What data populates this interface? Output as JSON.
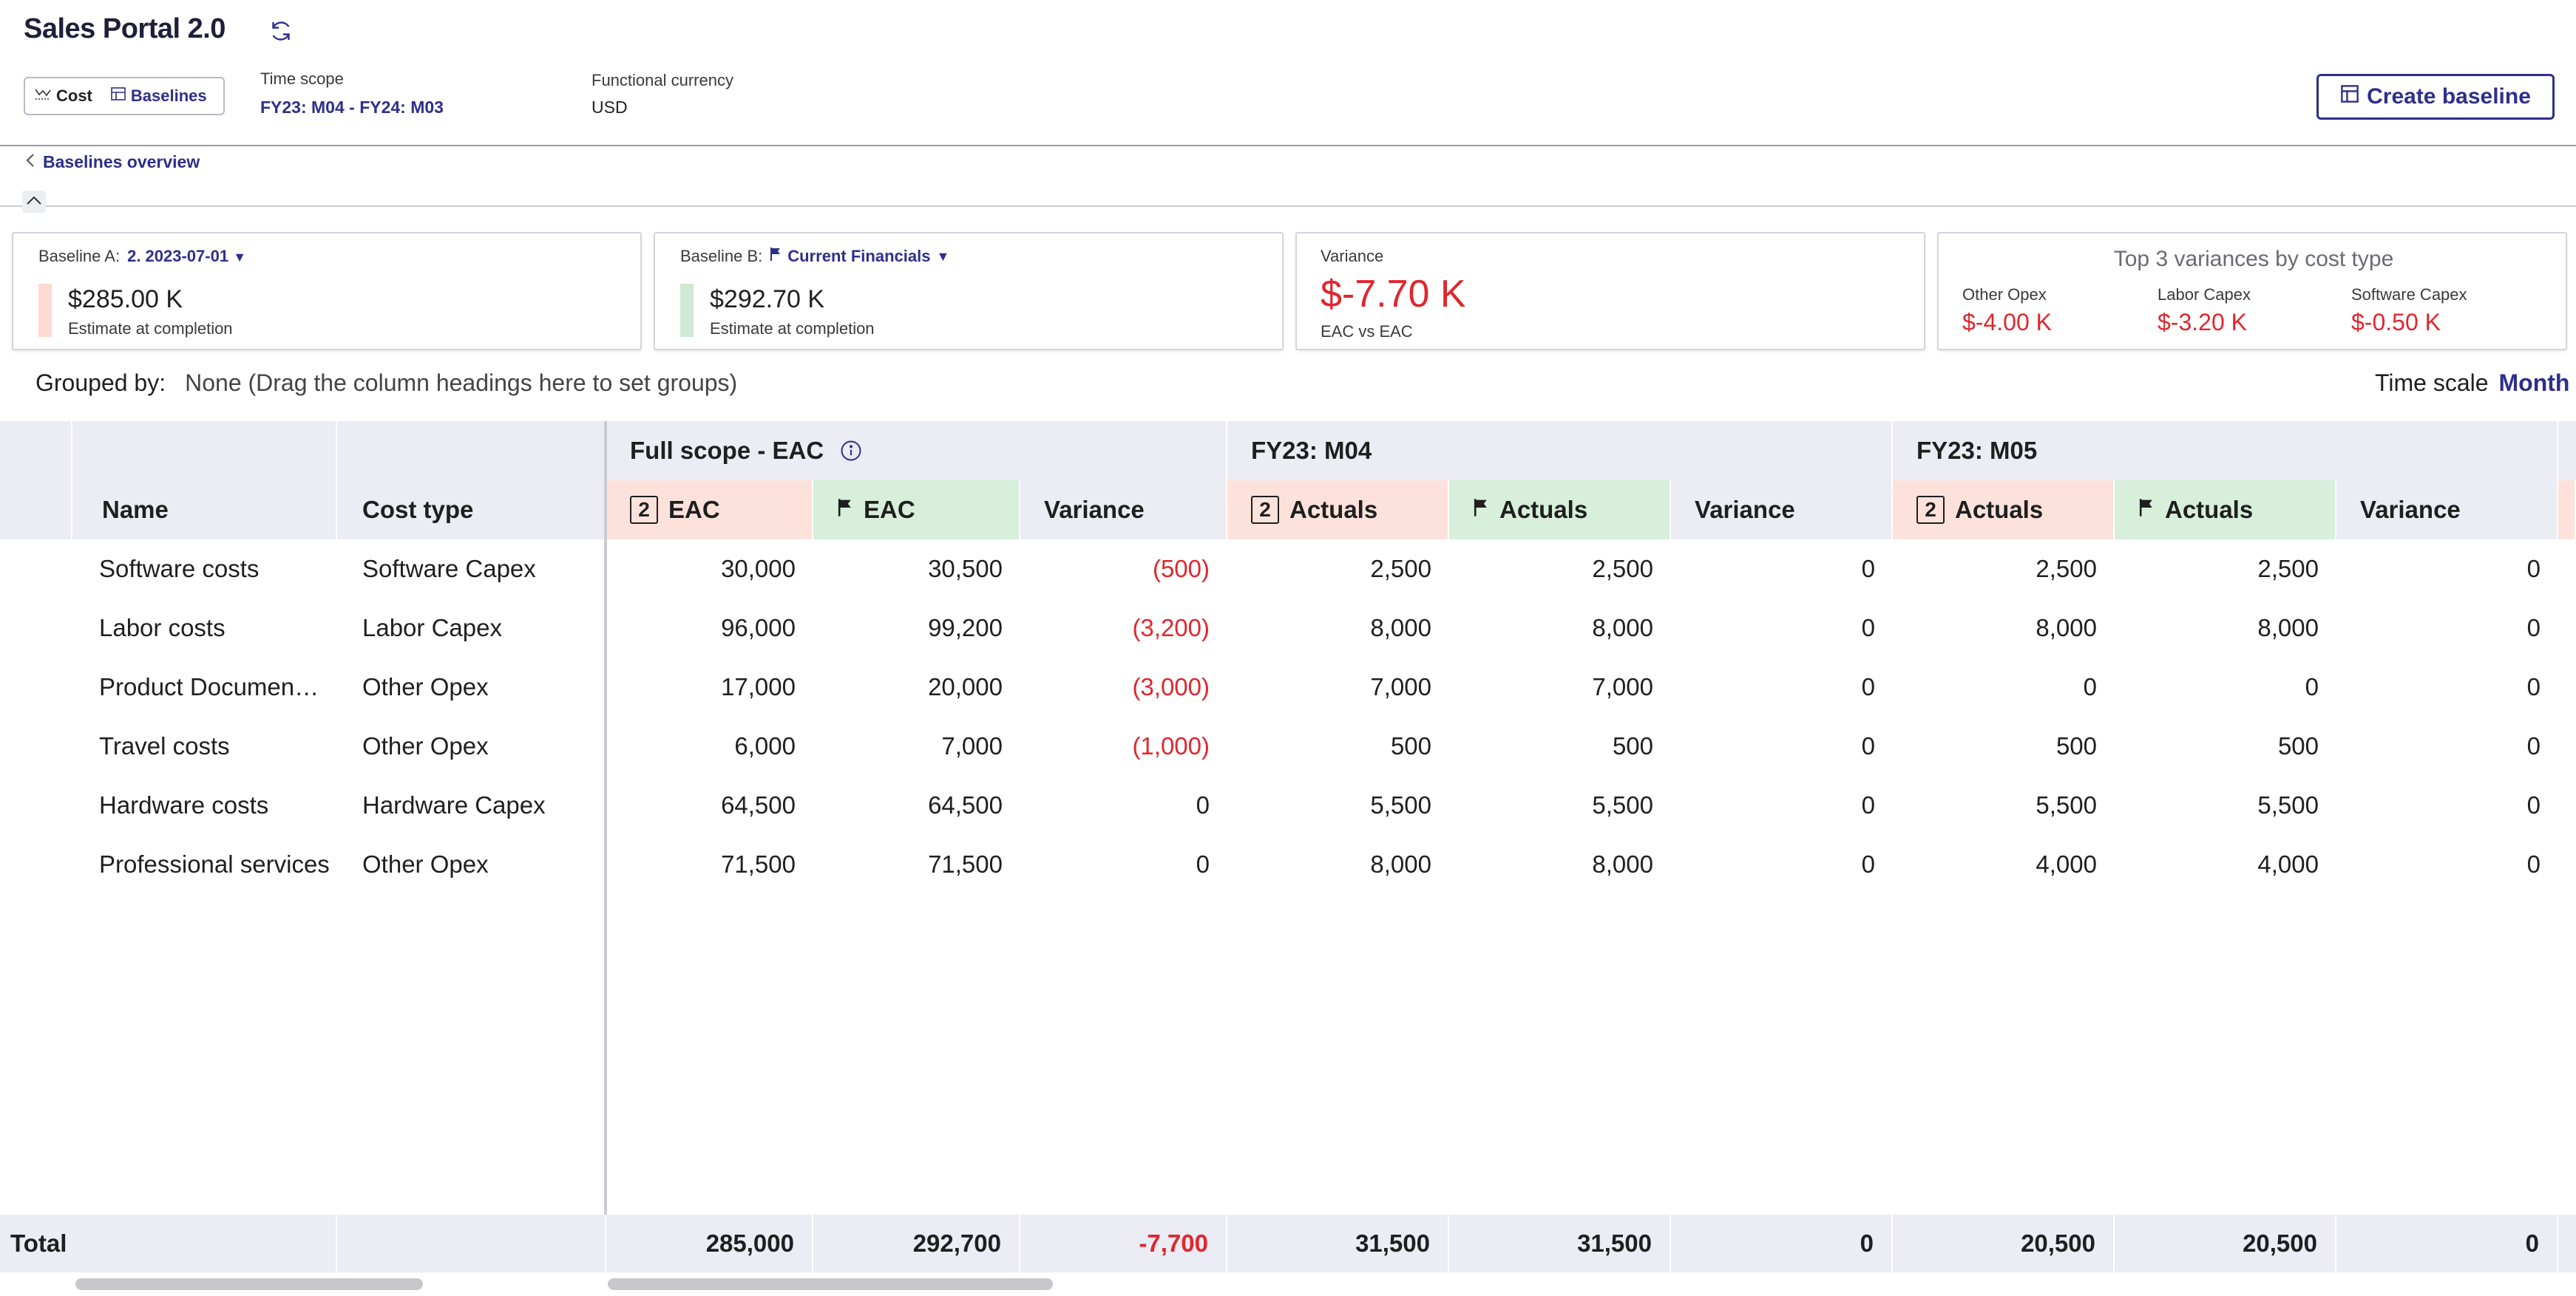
{
  "app": {
    "title": "Sales Portal 2.0"
  },
  "toggle": {
    "cost_label": "Cost",
    "baselines_label": "Baselines"
  },
  "time_scope": {
    "label": "Time scope",
    "value": "FY23: M04 - FY24: M03"
  },
  "functional_currency": {
    "label": "Functional currency",
    "value": "USD"
  },
  "create_baseline_label": "Create baseline",
  "back_link_label": "Baselines overview",
  "cards": {
    "baseline_a": {
      "label": "Baseline A:",
      "selected": "2. 2023-07-01",
      "amount": "$285.00 K",
      "caption": "Estimate at completion",
      "color": "#fdd9d2"
    },
    "baseline_b": {
      "label": "Baseline B:",
      "selected": "Current Financials",
      "amount": "$292.70 K",
      "caption": "Estimate at completion",
      "color": "#cfe9d4"
    },
    "variance": {
      "label": "Variance",
      "amount": "$-7.70 K",
      "caption": "EAC vs EAC"
    },
    "top3": {
      "title": "Top 3 variances by cost type",
      "items": [
        {
          "label": "Other Opex",
          "value": "$-4.00 K"
        },
        {
          "label": "Labor Capex",
          "value": "$-3.20 K"
        },
        {
          "label": "Software Capex",
          "value": "$-0.50 K"
        }
      ]
    }
  },
  "grouping": {
    "label": "Grouped by:",
    "hint": "None (Drag the column headings here to set groups)"
  },
  "time_scale": {
    "label": "Time scale",
    "value": "Month"
  },
  "table": {
    "group_headers": [
      "Full scope - EAC",
      "FY23: M04",
      "FY23: M05"
    ],
    "columns": {
      "name": "Name",
      "cost_type": "Cost type",
      "badge": "2",
      "eac": "EAC",
      "actuals": "Actuals",
      "variance": "Variance"
    },
    "rows": [
      {
        "name": "Software costs",
        "cost_type": "Software Capex",
        "v": [
          "30,000",
          "30,500",
          "(500)",
          "2,500",
          "2,500",
          "0",
          "2,500",
          "2,500",
          "0"
        ]
      },
      {
        "name": "Labor costs",
        "cost_type": "Labor Capex",
        "v": [
          "96,000",
          "99,200",
          "(3,200)",
          "8,000",
          "8,000",
          "0",
          "8,000",
          "8,000",
          "0"
        ]
      },
      {
        "name": "Product Documen…",
        "cost_type": "Other Opex",
        "v": [
          "17,000",
          "20,000",
          "(3,000)",
          "7,000",
          "7,000",
          "0",
          "0",
          "0",
          "0"
        ]
      },
      {
        "name": "Travel costs",
        "cost_type": "Other Opex",
        "v": [
          "6,000",
          "7,000",
          "(1,000)",
          "500",
          "500",
          "0",
          "500",
          "500",
          "0"
        ]
      },
      {
        "name": "Hardware costs",
        "cost_type": "Hardware Capex",
        "v": [
          "64,500",
          "64,500",
          "0",
          "5,500",
          "5,500",
          "0",
          "5,500",
          "5,500",
          "0"
        ]
      },
      {
        "name": "Professional services",
        "cost_type": "Other Opex",
        "v": [
          "71,500",
          "71,500",
          "0",
          "8,000",
          "8,000",
          "0",
          "4,000",
          "4,000",
          "0"
        ]
      }
    ],
    "total": {
      "label": "Total",
      "v": [
        "285,000",
        "292,700",
        "-7,700",
        "31,500",
        "31,500",
        "0",
        "20,500",
        "20,500",
        "0"
      ]
    }
  },
  "colors": {
    "accent": "#2e2f8a",
    "negative": "#e0262e",
    "baseline_a": "#fde2dc",
    "baseline_b": "#d7efdb",
    "header_bg": "#ebecf4"
  }
}
